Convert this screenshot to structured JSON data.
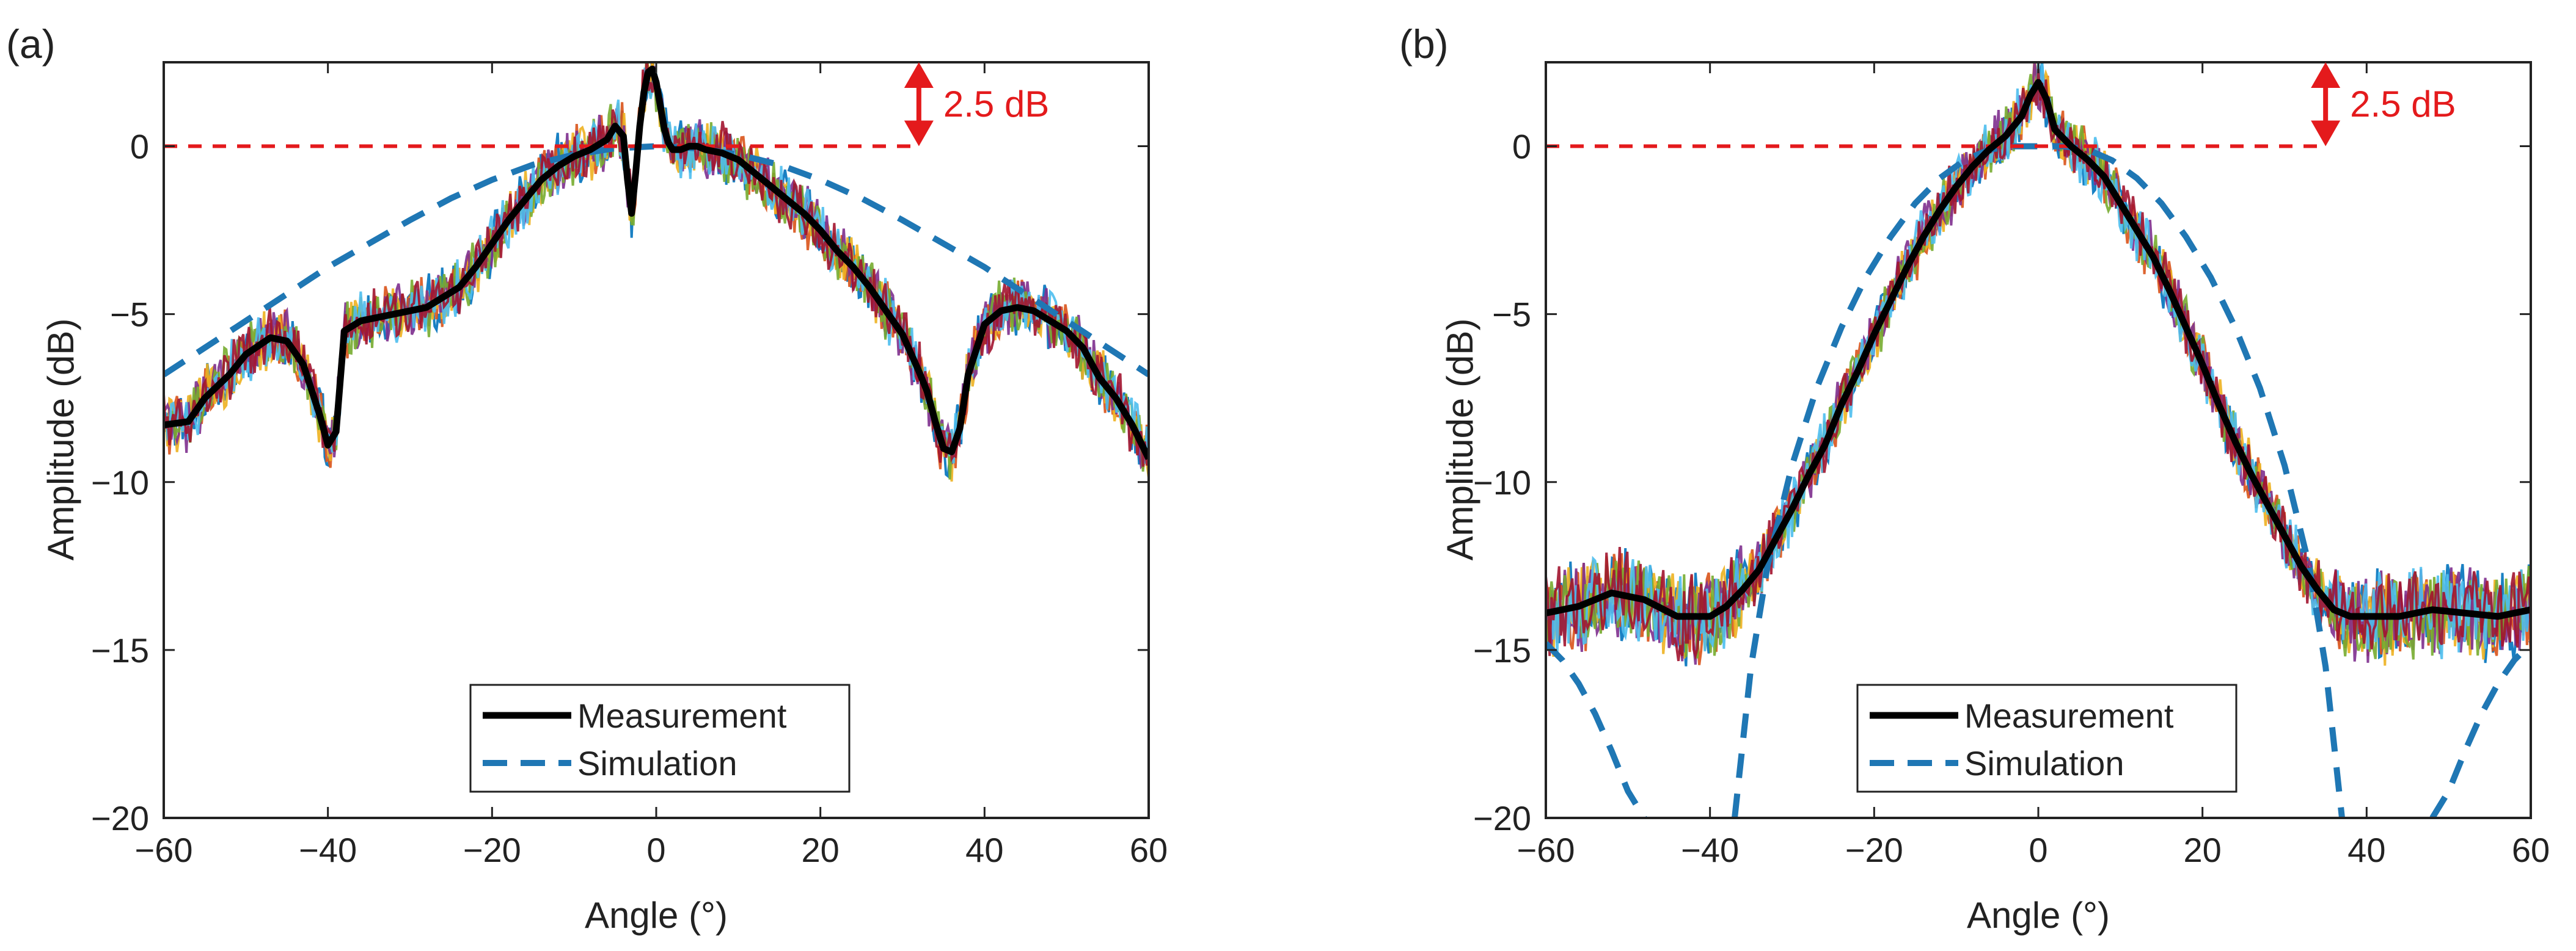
{
  "chart_data": [
    {
      "type": "line",
      "panel_label": "(a)",
      "xlabel": "Angle (°)",
      "ylabel": "Amplitude (dB)",
      "xlim": [
        -60,
        60
      ],
      "ylim": [
        -20,
        2.5
      ],
      "xticks": [
        -60,
        -40,
        -20,
        0,
        20,
        40,
        60
      ],
      "yticks": [
        -20,
        -15,
        -10,
        -5,
        0
      ],
      "grid": false,
      "legend": {
        "placement": "bottom-center",
        "entries": [
          "Measurement",
          "Simulation"
        ]
      },
      "annotation": {
        "text": "2.5 dB",
        "range": [
          0,
          2.5
        ],
        "x": 32
      },
      "reference_line": {
        "y": 0,
        "color": "#e41a1c",
        "style": "dashed"
      },
      "measurement": {
        "name": "Measurement",
        "color": "#000000",
        "x": [
          -60,
          -57,
          -55,
          -52,
          -50,
          -47,
          -45,
          -43,
          -41,
          -40,
          -39,
          -38,
          -36,
          -34,
          -32,
          -30,
          -28,
          -26,
          -24,
          -22,
          -20,
          -18,
          -16,
          -14,
          -12,
          -10,
          -8,
          -6,
          -5,
          -4,
          -3.5,
          -3,
          -2.5,
          -2,
          -1.5,
          -1,
          -0.5,
          0,
          0.5,
          1,
          1.5,
          2,
          3,
          4,
          5,
          6,
          8,
          10,
          12,
          14,
          16,
          18,
          20,
          22,
          24,
          26,
          28,
          30,
          32,
          33,
          34,
          35,
          36,
          37,
          38,
          40,
          42,
          44,
          46,
          48,
          50,
          52,
          54,
          56,
          58,
          60
        ],
        "y": [
          -8.3,
          -8.2,
          -7.5,
          -6.8,
          -6.2,
          -5.7,
          -5.8,
          -6.5,
          -8.0,
          -8.9,
          -8.5,
          -5.5,
          -5.2,
          -5.1,
          -5.0,
          -4.9,
          -4.8,
          -4.5,
          -4.2,
          -3.6,
          -2.9,
          -2.2,
          -1.6,
          -1.0,
          -0.6,
          -0.3,
          -0.1,
          0.2,
          0.6,
          0.3,
          -1.0,
          -2.0,
          -0.8,
          0.6,
          1.6,
          2.2,
          2.3,
          1.9,
          1.2,
          0.5,
          0.1,
          -0.1,
          -0.1,
          0.0,
          0.0,
          -0.1,
          -0.2,
          -0.4,
          -0.8,
          -1.2,
          -1.6,
          -2.0,
          -2.5,
          -3.1,
          -3.6,
          -4.2,
          -4.9,
          -5.6,
          -6.7,
          -7.3,
          -8.2,
          -9.0,
          -9.1,
          -8.4,
          -6.8,
          -5.3,
          -4.9,
          -4.8,
          -4.9,
          -5.2,
          -5.5,
          -6.0,
          -6.9,
          -7.5,
          -8.3,
          -9.3
        ]
      },
      "simulation": {
        "name": "Simulation",
        "color": "#1f77b4",
        "x": [
          -60,
          -55,
          -50,
          -45,
          -40,
          -35,
          -30,
          -25,
          -20,
          -15,
          -10,
          -5,
          0,
          5,
          10,
          15,
          20,
          25,
          30,
          35,
          40,
          45,
          50,
          55,
          60
        ],
        "y": [
          -6.8,
          -6.0,
          -5.2,
          -4.4,
          -3.6,
          -2.9,
          -2.2,
          -1.55,
          -1.0,
          -0.55,
          -0.25,
          -0.06,
          0,
          -0.06,
          -0.25,
          -0.55,
          -1.0,
          -1.55,
          -2.2,
          -2.9,
          -3.6,
          -4.4,
          -5.2,
          -6.0,
          -6.8
        ]
      }
    },
    {
      "type": "line",
      "panel_label": "(b)",
      "xlabel": "Angle (°)",
      "ylabel": "Amplitude (dB)",
      "xlim": [
        -60,
        60
      ],
      "ylim": [
        -20,
        2.5
      ],
      "xticks": [
        -60,
        -40,
        -20,
        0,
        20,
        40,
        60
      ],
      "yticks": [
        -20,
        -15,
        -10,
        -5,
        0
      ],
      "grid": false,
      "legend": {
        "placement": "bottom-center",
        "entries": [
          "Measurement",
          "Simulation"
        ]
      },
      "annotation": {
        "text": "2.5 dB",
        "range": [
          0,
          2.5
        ],
        "x": 35
      },
      "reference_line": {
        "y": 0,
        "color": "#e41a1c",
        "style": "dashed"
      },
      "measurement": {
        "name": "Measurement",
        "color": "#000000",
        "x": [
          -60,
          -56,
          -52,
          -48,
          -44,
          -40,
          -38,
          -36,
          -34,
          -32,
          -30,
          -28,
          -26,
          -24,
          -22,
          -20,
          -18,
          -16,
          -14,
          -12,
          -10,
          -8,
          -6,
          -4,
          -2,
          -1,
          0,
          1,
          2,
          4,
          6,
          8,
          10,
          12,
          14,
          16,
          18,
          20,
          22,
          24,
          26,
          28,
          30,
          32,
          34,
          36,
          38,
          40,
          44,
          48,
          52,
          56,
          60
        ],
        "y": [
          -13.9,
          -13.7,
          -13.3,
          -13.5,
          -14.0,
          -14.0,
          -13.7,
          -13.2,
          -12.6,
          -11.7,
          -10.8,
          -9.8,
          -8.9,
          -7.7,
          -6.7,
          -5.6,
          -4.6,
          -3.6,
          -2.7,
          -1.9,
          -1.2,
          -0.6,
          -0.1,
          0.3,
          0.9,
          1.5,
          1.9,
          1.4,
          0.5,
          0.0,
          -0.4,
          -0.9,
          -1.7,
          -2.5,
          -3.3,
          -4.3,
          -5.4,
          -6.5,
          -7.7,
          -8.8,
          -9.8,
          -10.7,
          -11.6,
          -12.5,
          -13.2,
          -13.8,
          -14.0,
          -14.0,
          -14.0,
          -13.8,
          -13.9,
          -14.0,
          -13.8
        ]
      },
      "simulation": {
        "name": "Simulation",
        "color": "#1f77b4",
        "left_branch": {
          "x": [
            -60,
            -58,
            -56,
            -54,
            -52,
            -50,
            -48
          ],
          "y": [
            -14.8,
            -15.3,
            -16.0,
            -16.9,
            -18.0,
            -19.2,
            -20.0
          ]
        },
        "main_lobe": {
          "x": [
            -37,
            -35,
            -33,
            -30,
            -27,
            -24,
            -21,
            -18,
            -15,
            -12,
            -9,
            -6,
            -3,
            0,
            3,
            6,
            9,
            12,
            15,
            18,
            21,
            24,
            27,
            30,
            33,
            35,
            37
          ],
          "y": [
            -20.0,
            -15.5,
            -12.5,
            -9.5,
            -7.2,
            -5.4,
            -3.9,
            -2.7,
            -1.7,
            -0.95,
            -0.42,
            -0.1,
            0,
            0,
            0,
            -0.1,
            -0.42,
            -0.95,
            -1.7,
            -2.7,
            -3.9,
            -5.4,
            -7.2,
            -9.5,
            -12.5,
            -15.5,
            -20.0
          ]
        },
        "right_branch": {
          "x": [
            48,
            50,
            52,
            54,
            56,
            58,
            60
          ],
          "y": [
            -20.0,
            -19.2,
            -18.0,
            -16.9,
            -16.0,
            -15.3,
            -14.8
          ]
        }
      }
    }
  ]
}
